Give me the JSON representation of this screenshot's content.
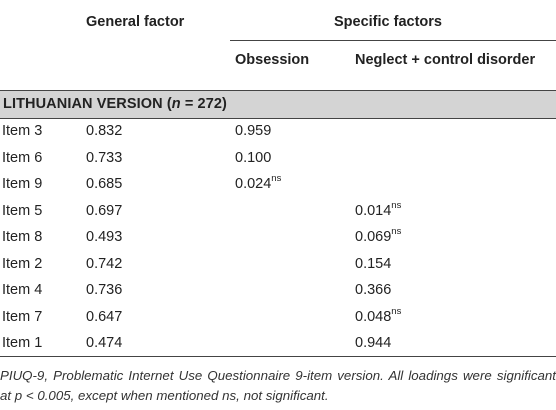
{
  "header": {
    "general_factor": "General factor",
    "specific_factors": "Specific factors",
    "obsession": "Obsession",
    "neglect": "Neglect + control disorder"
  },
  "section": {
    "label_prefix": "LITHUANIAN VERSION (",
    "label_n": "n",
    "label_suffix": " = 272)"
  },
  "rows": [
    {
      "item": "Item 3",
      "general": "0.832",
      "obsession": "0.959",
      "obsession_sup": "",
      "neglect": "",
      "neglect_sup": ""
    },
    {
      "item": "Item 6",
      "general": "0.733",
      "obsession": "0.100",
      "obsession_sup": "",
      "neglect": "",
      "neglect_sup": ""
    },
    {
      "item": "Item 9",
      "general": "0.685",
      "obsession": "0.024",
      "obsession_sup": "ns",
      "neglect": "",
      "neglect_sup": ""
    },
    {
      "item": "Item 5",
      "general": "0.697",
      "obsession": "",
      "obsession_sup": "",
      "neglect": "0.014",
      "neglect_sup": "ns"
    },
    {
      "item": "Item 8",
      "general": "0.493",
      "obsession": "",
      "obsession_sup": "",
      "neglect": "0.069",
      "neglect_sup": "ns"
    },
    {
      "item": "Item 2",
      "general": "0.742",
      "obsession": "",
      "obsession_sup": "",
      "neglect": "0.154",
      "neglect_sup": ""
    },
    {
      "item": "Item 4",
      "general": "0.736",
      "obsession": "",
      "obsession_sup": "",
      "neglect": "0.366",
      "neglect_sup": ""
    },
    {
      "item": "Item 7",
      "general": "0.647",
      "obsession": "",
      "obsession_sup": "",
      "neglect": "0.048",
      "neglect_sup": "ns"
    },
    {
      "item": "Item 1",
      "general": "0.474",
      "obsession": "",
      "obsession_sup": "",
      "neglect": "0.944",
      "neglect_sup": ""
    }
  ],
  "footnote": "PIUQ-9, Problematic Internet Use Questionnaire 9-item version. All loadings were significant at p < 0.005, except when mentioned ns, not significant."
}
